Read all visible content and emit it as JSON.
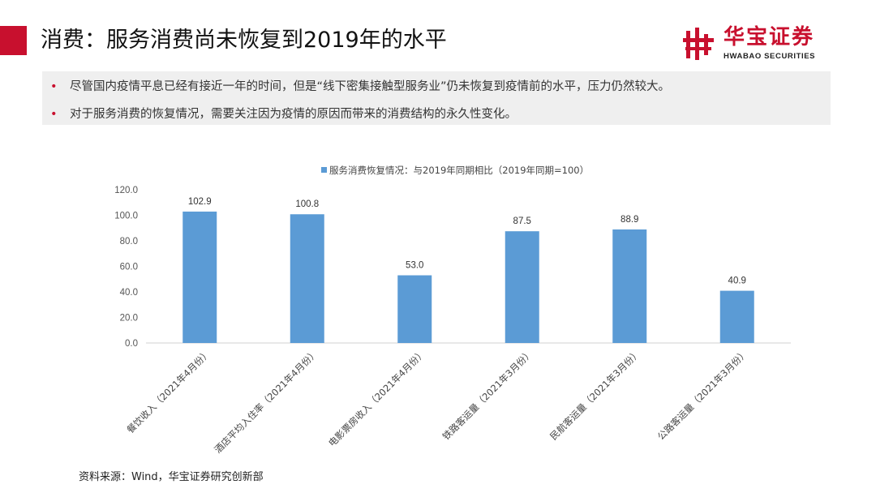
{
  "header": {
    "title": "消费：服务消费尚未恢复到2019年的水平",
    "logo_name": "华宝证券",
    "logo_en": "HWABAO SECURITIES"
  },
  "bullets": [
    "尽管国内疫情平息已经有接近一年的时间，但是“线下密集接触型服务业”仍未恢复到疫情前的水平，压力仍然较大。",
    "对于服务消费的恢复情况，需要关注因为疫情的原因而带来的消费结构的永久性变化。"
  ],
  "source_note": "资料来源：Wind，华宝证券研究创新部",
  "colors": {
    "accent": "#c8102e",
    "bar": "#5b9bd5"
  },
  "chart_data": {
    "type": "bar",
    "categories": [
      "餐饮收入（2021年4月份）",
      "酒店平均入住率（2021年4月份）",
      "电影票房收入（2021年4月份）",
      "铁路客运量（2021年3月份）",
      "民航客运量（2021年3月份）",
      "公路客运量（2021年3月份）"
    ],
    "series": [
      {
        "name": "服务消费恢复情况：与2019年同期相比（2019年同期=100）",
        "values": [
          102.9,
          100.8,
          53.0,
          87.5,
          88.9,
          40.9
        ]
      }
    ],
    "value_labels": [
      "102.9",
      "100.8",
      "53.0",
      "87.5",
      "88.9",
      "40.9"
    ],
    "y_ticks": [
      "0.0",
      "20.0",
      "40.0",
      "60.0",
      "80.0",
      "100.0",
      "120.0"
    ],
    "ylim": [
      0,
      120
    ],
    "legend_position": "top",
    "grid": false
  }
}
